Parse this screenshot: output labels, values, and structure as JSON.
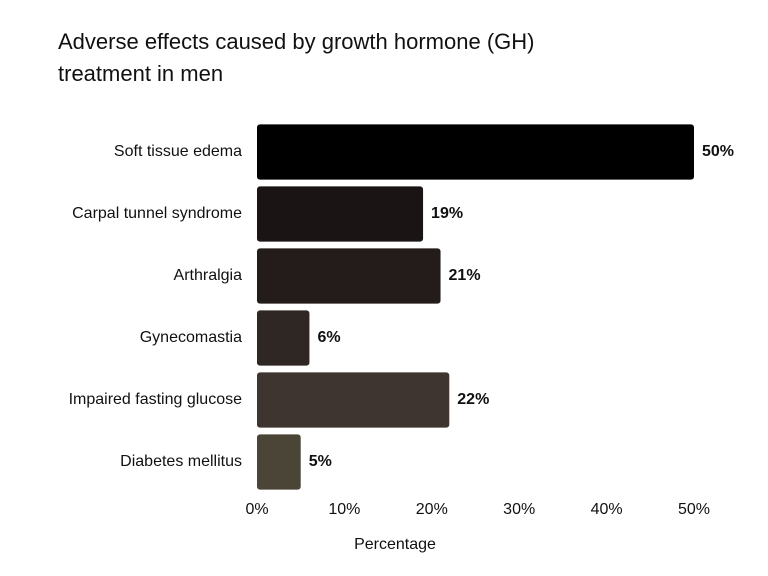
{
  "chart_data": {
    "type": "bar",
    "orientation": "horizontal",
    "title": "Adverse effects caused by growth hormone (GH) treatment in men",
    "x_label": "Percentage",
    "categories": [
      "Soft tissue edema",
      "Carpal tunnel syndrome",
      "Arthralgia",
      "Gynecomastia",
      "Impaired fasting glucose",
      "Diabetes mellitus"
    ],
    "values": [
      50,
      19,
      21,
      6,
      22,
      5
    ],
    "value_labels": [
      "50%",
      "19%",
      "21%",
      "6%",
      "22%",
      "5%"
    ],
    "colors": [
      "#000000",
      "#1a1514",
      "#231c1b",
      "#2f2724",
      "#3e3530",
      "#4b4537"
    ],
    "xlim": [
      0,
      50
    ],
    "xticks": [
      {
        "value": 0,
        "label": "0%"
      },
      {
        "value": 10,
        "label": "10%"
      },
      {
        "value": 20,
        "label": "20%"
      },
      {
        "value": 30,
        "label": "30%"
      },
      {
        "value": 40,
        "label": "40%"
      },
      {
        "value": 50,
        "label": "50%"
      }
    ],
    "grid": false
  }
}
